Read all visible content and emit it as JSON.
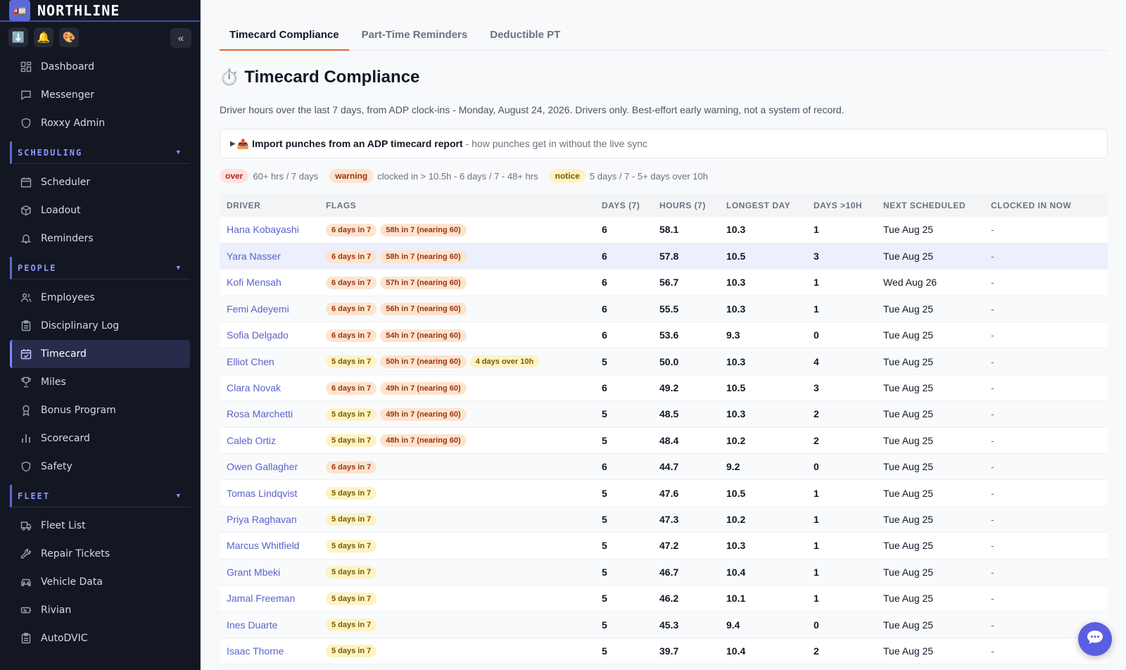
{
  "brand": {
    "name": "NORTHLINE",
    "logo_icon": "truck-icon"
  },
  "quick_actions": [
    {
      "icon": "download-icon",
      "glyph": "⬇️"
    },
    {
      "icon": "bell-icon",
      "glyph": "🔔"
    },
    {
      "icon": "palette-icon",
      "glyph": "🎨"
    }
  ],
  "collapse_label": "«",
  "nav": {
    "top": [
      {
        "label": "Dashboard",
        "icon": "dashboard-icon"
      },
      {
        "label": "Messenger",
        "icon": "message-icon"
      },
      {
        "label": "Roxxy Admin",
        "icon": "shield-icon"
      }
    ],
    "scheduling": {
      "title": "SCHEDULING",
      "items": [
        {
          "label": "Scheduler",
          "icon": "calendar-icon"
        },
        {
          "label": "Loadout",
          "icon": "box-icon"
        },
        {
          "label": "Reminders",
          "icon": "bell-icon"
        }
      ]
    },
    "people": {
      "title": "PEOPLE",
      "items": [
        {
          "label": "Employees",
          "icon": "users-icon"
        },
        {
          "label": "Disciplinary Log",
          "icon": "clipboard-icon"
        },
        {
          "label": "Timecard",
          "icon": "calendar-check-icon",
          "active": true
        },
        {
          "label": "Miles",
          "icon": "trophy-icon"
        },
        {
          "label": "Bonus Program",
          "icon": "award-icon"
        },
        {
          "label": "Scorecard",
          "icon": "bar-chart-icon"
        },
        {
          "label": "Safety",
          "icon": "shield-icon"
        }
      ]
    },
    "fleet": {
      "title": "FLEET",
      "items": [
        {
          "label": "Fleet List",
          "icon": "truck-icon"
        },
        {
          "label": "Repair Tickets",
          "icon": "wrench-icon"
        },
        {
          "label": "Vehicle Data",
          "icon": "car-icon"
        },
        {
          "label": "Rivian",
          "icon": "battery-icon"
        },
        {
          "label": "AutoDVIC",
          "icon": "clipboard-icon"
        }
      ]
    },
    "caret": "▼"
  },
  "tabs": [
    {
      "label": "Timecard Compliance",
      "active": true
    },
    {
      "label": "Part-Time Reminders"
    },
    {
      "label": "Deductible PT"
    }
  ],
  "page": {
    "title_icon": "⏱️",
    "title": "Timecard Compliance",
    "subtitle": "Driver hours over the last 7 days, from ADP clock-ins - Monday, August 24, 2026. Drivers only. Best-effort early warning, not a system of record."
  },
  "import": {
    "arrow": "▶",
    "icon": "📤",
    "title": "Import punches from an ADP timecard report",
    "note": "- how punches get in without the live sync"
  },
  "legend": [
    {
      "pill": "over",
      "text": "60+ hrs / 7 days",
      "kind": "over"
    },
    {
      "pill": "warning",
      "text": "clocked in > 10.5h - 6 days / 7 - 48+ hrs",
      "kind": "warn"
    },
    {
      "pill": "notice",
      "text": "5 days / 7 - 5+ days over 10h",
      "kind": "notice"
    }
  ],
  "table": {
    "headers": [
      "DRIVER",
      "FLAGS",
      "DAYS (7)",
      "HOURS (7)",
      "LONGEST DAY",
      "DAYS >10H",
      "NEXT SCHEDULED",
      "CLOCKED IN NOW"
    ],
    "rows": [
      {
        "driver": "Hana Kobayashi",
        "flags": [
          {
            "t": "6 days in 7",
            "k": "warn"
          },
          {
            "t": "58h in 7 (nearing 60)",
            "k": "warn"
          }
        ],
        "days": "6",
        "hours": "58.1",
        "longest": "10.3",
        "over10": "1",
        "next": "Tue Aug 25",
        "clocked": "-"
      },
      {
        "driver": "Yara Nasser",
        "flags": [
          {
            "t": "6 days in 7",
            "k": "warn"
          },
          {
            "t": "58h in 7 (nearing 60)",
            "k": "warn"
          }
        ],
        "days": "6",
        "hours": "57.8",
        "longest": "10.5",
        "over10": "3",
        "next": "Tue Aug 25",
        "clocked": "-",
        "highlight": true
      },
      {
        "driver": "Kofi Mensah",
        "flags": [
          {
            "t": "6 days in 7",
            "k": "warn"
          },
          {
            "t": "57h in 7 (nearing 60)",
            "k": "warn"
          }
        ],
        "days": "6",
        "hours": "56.7",
        "longest": "10.3",
        "over10": "1",
        "next": "Wed Aug 26",
        "clocked": "-"
      },
      {
        "driver": "Femi Adeyemi",
        "flags": [
          {
            "t": "6 days in 7",
            "k": "warn"
          },
          {
            "t": "56h in 7 (nearing 60)",
            "k": "warn"
          }
        ],
        "days": "6",
        "hours": "55.5",
        "longest": "10.3",
        "over10": "1",
        "next": "Tue Aug 25",
        "clocked": "-"
      },
      {
        "driver": "Sofia Delgado",
        "flags": [
          {
            "t": "6 days in 7",
            "k": "warn"
          },
          {
            "t": "54h in 7 (nearing 60)",
            "k": "warn"
          }
        ],
        "days": "6",
        "hours": "53.6",
        "longest": "9.3",
        "over10": "0",
        "next": "Tue Aug 25",
        "clocked": "-"
      },
      {
        "driver": "Elliot Chen",
        "flags": [
          {
            "t": "5 days in 7",
            "k": "notice"
          },
          {
            "t": "50h in 7 (nearing 60)",
            "k": "warn"
          },
          {
            "t": "4 days over 10h",
            "k": "notice"
          }
        ],
        "days": "5",
        "hours": "50.0",
        "longest": "10.3",
        "over10": "4",
        "next": "Tue Aug 25",
        "clocked": "-"
      },
      {
        "driver": "Clara Novak",
        "flags": [
          {
            "t": "6 days in 7",
            "k": "warn"
          },
          {
            "t": "49h in 7 (nearing 60)",
            "k": "warn"
          }
        ],
        "days": "6",
        "hours": "49.2",
        "longest": "10.5",
        "over10": "3",
        "next": "Tue Aug 25",
        "clocked": "-"
      },
      {
        "driver": "Rosa Marchetti",
        "flags": [
          {
            "t": "5 days in 7",
            "k": "notice"
          },
          {
            "t": "49h in 7 (nearing 60)",
            "k": "warn"
          }
        ],
        "days": "5",
        "hours": "48.5",
        "longest": "10.3",
        "over10": "2",
        "next": "Tue Aug 25",
        "clocked": "-"
      },
      {
        "driver": "Caleb Ortiz",
        "flags": [
          {
            "t": "5 days in 7",
            "k": "notice"
          },
          {
            "t": "48h in 7 (nearing 60)",
            "k": "warn"
          }
        ],
        "days": "5",
        "hours": "48.4",
        "longest": "10.2",
        "over10": "2",
        "next": "Tue Aug 25",
        "clocked": "-"
      },
      {
        "driver": "Owen Gallagher",
        "flags": [
          {
            "t": "6 days in 7",
            "k": "warn"
          }
        ],
        "days": "6",
        "hours": "44.7",
        "longest": "9.2",
        "over10": "0",
        "next": "Tue Aug 25",
        "clocked": "-"
      },
      {
        "driver": "Tomas Lindqvist",
        "flags": [
          {
            "t": "5 days in 7",
            "k": "notice"
          }
        ],
        "days": "5",
        "hours": "47.6",
        "longest": "10.5",
        "over10": "1",
        "next": "Tue Aug 25",
        "clocked": "-"
      },
      {
        "driver": "Priya Raghavan",
        "flags": [
          {
            "t": "5 days in 7",
            "k": "notice"
          }
        ],
        "days": "5",
        "hours": "47.3",
        "longest": "10.2",
        "over10": "1",
        "next": "Tue Aug 25",
        "clocked": "-"
      },
      {
        "driver": "Marcus Whitfield",
        "flags": [
          {
            "t": "5 days in 7",
            "k": "notice"
          }
        ],
        "days": "5",
        "hours": "47.2",
        "longest": "10.3",
        "over10": "1",
        "next": "Tue Aug 25",
        "clocked": "-"
      },
      {
        "driver": "Grant Mbeki",
        "flags": [
          {
            "t": "5 days in 7",
            "k": "notice"
          }
        ],
        "days": "5",
        "hours": "46.7",
        "longest": "10.4",
        "over10": "1",
        "next": "Tue Aug 25",
        "clocked": "-"
      },
      {
        "driver": "Jamal Freeman",
        "flags": [
          {
            "t": "5 days in 7",
            "k": "notice"
          }
        ],
        "days": "5",
        "hours": "46.2",
        "longest": "10.1",
        "over10": "1",
        "next": "Tue Aug 25",
        "clocked": "-"
      },
      {
        "driver": "Ines Duarte",
        "flags": [
          {
            "t": "5 days in 7",
            "k": "notice"
          }
        ],
        "days": "5",
        "hours": "45.3",
        "longest": "9.4",
        "over10": "0",
        "next": "Tue Aug 25",
        "clocked": "-"
      },
      {
        "driver": "Isaac Thorne",
        "flags": [
          {
            "t": "5 days in 7",
            "k": "notice"
          }
        ],
        "days": "5",
        "hours": "39.7",
        "longest": "10.4",
        "over10": "2",
        "next": "Tue Aug 25",
        "clocked": "-"
      }
    ]
  },
  "chat_fab_icon": "chat-bubble-icon",
  "colors": {
    "accent": "#5b6ad6",
    "tab_underline": "#e0662a",
    "link": "#5a62c9"
  }
}
